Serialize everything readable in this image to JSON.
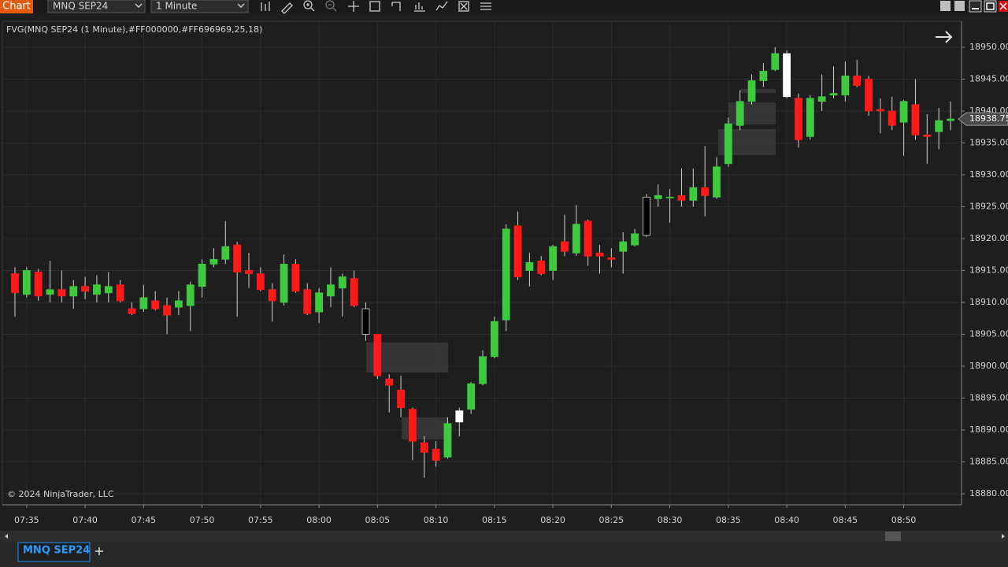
{
  "toolbar": {
    "title": "Chart",
    "instrument": "MNQ SEP24",
    "interval": "1 Minute"
  },
  "chart_data": {
    "type": "candlestick",
    "indicator_label": "FVG(MNQ SEP24 (1 Minute),#FF000000,#FF696969,25,18)",
    "copyright": "© 2024 NinjaTrader, LLC",
    "categories": [
      null,
      "07:35",
      null,
      null,
      null,
      null,
      "07:40",
      null,
      null,
      null,
      null,
      "07:45",
      null,
      null,
      null,
      null,
      "07:50",
      null,
      null,
      null,
      null,
      "07:55",
      null,
      null,
      null,
      null,
      "08:00",
      null,
      null,
      null,
      null,
      "08:05",
      null,
      null,
      null,
      null,
      "08:10",
      null,
      null,
      null,
      null,
      "08:15",
      null,
      null,
      null,
      null,
      "08:20",
      null,
      null,
      null,
      null,
      "08:25",
      null,
      null,
      null,
      null,
      "08:30",
      null,
      null,
      null,
      null,
      "08:35",
      null,
      null,
      null,
      null,
      "08:40",
      null,
      null,
      null,
      null,
      "08:45",
      null,
      null,
      null,
      null,
      "08:50",
      null,
      null,
      null,
      null
    ],
    "open": [
      18914.5,
      18911.25,
      18914.75,
      18911.25,
      18912,
      18911,
      18912.5,
      18911.25,
      18911.5,
      18912.75,
      18909,
      18909,
      18910.25,
      18909.5,
      18909.25,
      18909.5,
      18912.5,
      18916,
      18916.75,
      18919,
      18915,
      18914.5,
      18912,
      18910,
      18916,
      18912,
      18908.5,
      18911,
      18912.25,
      18913.75,
      18909,
      18905,
      18898,
      18896.25,
      18893.25,
      18888,
      18887,
      18885.75,
      18891.25,
      18893.25,
      18897.25,
      18901.5,
      18907.25,
      18922,
      18915,
      18916.5,
      18915,
      18919.5,
      18917.75,
      18922.75,
      18917.75,
      18917,
      18918,
      18919,
      18920.5,
      18926.25,
      18926.5,
      18926.75,
      18926,
      18928,
      18926.5,
      18931.75,
      18937.75,
      18941.5,
      18944.75,
      18946.5,
      18949,
      18942,
      18936,
      18941.5,
      18942.5,
      18942.5,
      18945.5,
      18945,
      18940.25,
      18940,
      18938.25,
      18941,
      18936.25,
      18936.75,
      18938.5
    ],
    "high": [
      18915.5,
      18915.5,
      18915.25,
      18916.5,
      18915,
      18913.5,
      18914,
      18914.25,
      18914.75,
      18913.5,
      18910,
      18912.75,
      18911.75,
      18910.75,
      18911.75,
      18913.25,
      18916.75,
      18918.5,
      18922.75,
      18919.5,
      18917.75,
      18915.5,
      18913,
      18917.5,
      18916.75,
      18913,
      18912.25,
      18915.5,
      18914.5,
      18915,
      18910,
      18905,
      18898.75,
      18898.5,
      18893.5,
      18889,
      18888.25,
      18892,
      18893.5,
      18897.5,
      18902.5,
      18907.75,
      18922.25,
      18924.25,
      18917.75,
      18917.25,
      18919,
      18923.75,
      18925.25,
      18923,
      18919,
      18918.5,
      18921,
      18921.5,
      18927,
      18928.5,
      18927.75,
      18931,
      18931,
      18934.5,
      18932.75,
      18939,
      18943.25,
      18945.75,
      18947.5,
      18950,
      18949.5,
      18942.75,
      18942.5,
      18945.75,
      18947,
      18947.75,
      18948,
      18945.5,
      18942,
      18942.25,
      18941.75,
      18945,
      18939.5,
      18940.5,
      18941.5
    ],
    "low": [
      18907.75,
      18910.75,
      18910.25,
      18910,
      18910,
      18909,
      18910.5,
      18910,
      18910,
      18910,
      18908,
      18908.5,
      18908.75,
      18905,
      18908,
      18905.5,
      18910.75,
      18915.5,
      18916,
      18907.75,
      18912.25,
      18911.75,
      18907,
      18909.5,
      18911.5,
      18908,
      18906.75,
      18909.25,
      18907.75,
      18909.25,
      18904,
      18898,
      18892.75,
      18892,
      18885.25,
      18882.5,
      18884.25,
      18885.5,
      18889,
      18892.5,
      18897,
      18901.25,
      18905.5,
      18913.5,
      18912.5,
      18914.25,
      18913.5,
      18917.25,
      18917.25,
      18915.75,
      18914.5,
      18915.5,
      18914.5,
      18918.75,
      18920.25,
      18925,
      18922.5,
      18925,
      18925,
      18923.5,
      18926.25,
      18931.25,
      18937,
      18941,
      18943.75,
      18946.25,
      18942,
      18934.25,
      18935.5,
      18940,
      18942,
      18941.5,
      18943.75,
      18939.25,
      18936.5,
      18937,
      18933,
      18935.5,
      18931.75,
      18934,
      18937
    ],
    "close": [
      18911.5,
      18915,
      18911,
      18912,
      18911,
      18912.5,
      18911.75,
      18912.75,
      18912.5,
      18910.25,
      18908.25,
      18910.75,
      18909,
      18908,
      18910.25,
      18912.75,
      18916,
      18916.75,
      18918.75,
      18914.75,
      18914.5,
      18912,
      18910.25,
      18916,
      18911.75,
      18908.25,
      18911.5,
      18912.75,
      18914,
      18909.5,
      18905,
      18898.5,
      18897,
      18893.5,
      18888.25,
      18886.5,
      18885.25,
      18891,
      18893,
      18897.25,
      18901.5,
      18907,
      18921.5,
      18914,
      18916.25,
      18914.5,
      18918.75,
      18918,
      18922.25,
      18917.25,
      18917.25,
      18916.75,
      18919.5,
      18920.75,
      18926.5,
      18926.75,
      18926.5,
      18926,
      18928,
      18926.75,
      18931.25,
      18938,
      18941.5,
      18944.75,
      18946.25,
      18949,
      18942.25,
      18935.5,
      18942,
      18942.25,
      18942.75,
      18945.5,
      18944,
      18940,
      18940,
      18937.75,
      18941.5,
      18936.25,
      18936,
      18938.5,
      18938.75
    ],
    "up_color": "#3ec93e",
    "down_color": "#ff1a1a",
    "wick_color": "#d0d0d0",
    "bar_color_overrides": [
      null,
      null,
      null,
      null,
      null,
      null,
      null,
      null,
      null,
      null,
      null,
      null,
      null,
      null,
      null,
      null,
      null,
      null,
      null,
      null,
      null,
      null,
      null,
      null,
      null,
      null,
      null,
      null,
      null,
      null,
      "#000000",
      null,
      null,
      null,
      null,
      null,
      null,
      null,
      "#ffffff",
      null,
      null,
      null,
      null,
      null,
      null,
      null,
      null,
      null,
      null,
      null,
      null,
      null,
      null,
      null,
      "#000000",
      null,
      null,
      null,
      null,
      null,
      null,
      null,
      null,
      null,
      null,
      null,
      "#ffffff",
      null,
      null,
      null,
      null,
      null,
      null,
      null,
      null,
      null,
      null,
      null,
      null,
      null,
      null
    ],
    "ylim": [
      18878.27,
      18954.07
    ],
    "yticks": [
      {
        "value": 18880,
        "label": "18880.00"
      },
      {
        "value": 18885,
        "label": "18885.00"
      },
      {
        "value": 18890,
        "label": "18890.00"
      },
      {
        "value": 18895,
        "label": "18895.00"
      },
      {
        "value": 18900,
        "label": "18900.00"
      },
      {
        "value": 18905,
        "label": "18905.00"
      },
      {
        "value": 18910,
        "label": "18910.00"
      },
      {
        "value": 18915,
        "label": "18915.00"
      },
      {
        "value": 18920,
        "label": "18920.00"
      },
      {
        "value": 18925,
        "label": "18925.00"
      },
      {
        "value": 18930,
        "label": "18930.00"
      },
      {
        "value": 18935,
        "label": "18935.00"
      },
      {
        "value": 18940,
        "label": "18940.00"
      },
      {
        "value": 18945,
        "label": "18945.00"
      },
      {
        "value": 18950,
        "label": "18950.00"
      }
    ],
    "last_price": 18938.75,
    "grid": true
  },
  "tabs": [
    {
      "label": "MNQ SEP24"
    }
  ]
}
